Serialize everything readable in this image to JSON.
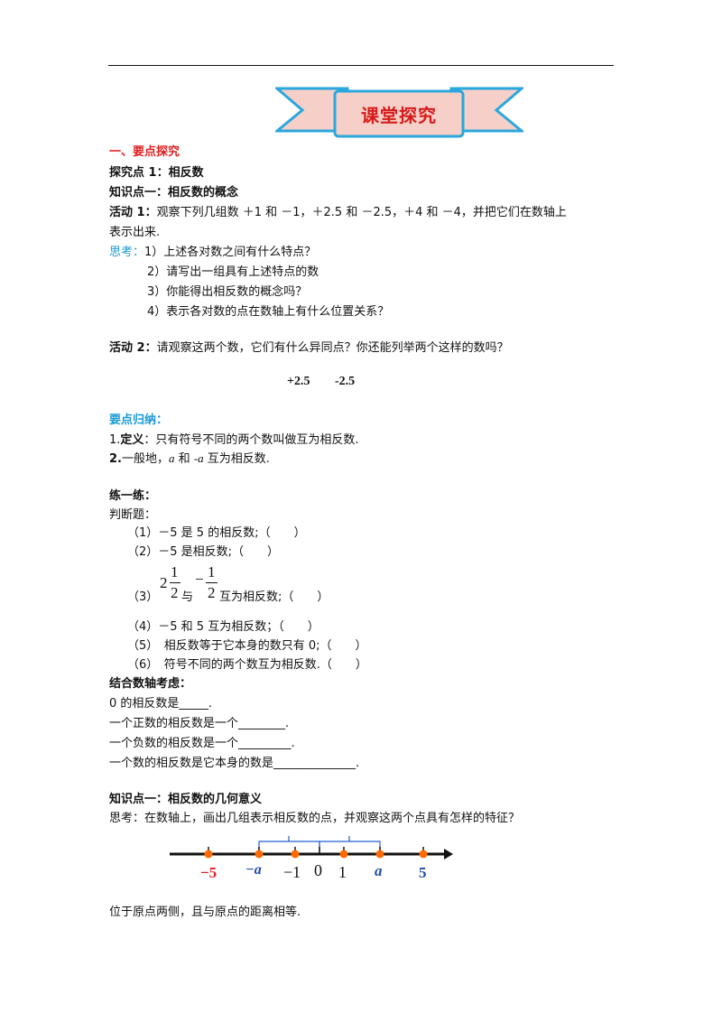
{
  "banner": {
    "title": "课堂探究"
  },
  "sec1": {
    "heading": "一、要点探究"
  },
  "explore1": {
    "title": "探究点 1：相反数"
  },
  "kp1": {
    "title": "知识点一：相反数的概念"
  },
  "act1": {
    "label": "活动 1：",
    "line1": "观察下列几组数 ＋1 和 －1，＋2.5 和 －2.5，＋4 和 －4，并把它们在数轴上",
    "line2": "表示出来."
  },
  "think": {
    "label": "思考：",
    "q1": "1）上述各对数之间有什么特点？",
    "q2": "2）请写出一组具有上述特点的数",
    "q3": "3）你能得出相反数的概念吗？",
    "q4": "4）表示各对数的点在数轴上有什么位置关系？"
  },
  "act2": {
    "label": "活动 2：",
    "text": "请观察这两个数，它们有什么异同点？你还能列举两个这样的数吗？",
    "num_a": "+2.5",
    "num_b": "-2.5"
  },
  "summary": {
    "label": "要点归纳：",
    "d1_num": "1.",
    "d1_bold": "定义",
    "d1_text": "：只有符号不同的两个数叫做互为相反数.",
    "d2_num": "2.",
    "d2_pre": "一般地，",
    "d2_a": "a",
    "d2_mid": " 和 ",
    "d2_na": "-a",
    "d2_post": " 互为相反数."
  },
  "practice": {
    "label": "练一练：",
    "judge": "判断题：",
    "i1": "（1）－5 是 5 的相反数;（　　）",
    "i2": "（2）－5 是相反数;（　　）",
    "i3_pre": "（3）",
    "i3_w1": "2",
    "i3_n1": "1",
    "i3_d1": "2",
    "i3_with": "与",
    "i3_minus": "−",
    "i3_n2": "1",
    "i3_d2": "2",
    "i3_post": "互为相反数;（　　）",
    "i4": "（4）－5 和 5 互为相反数；（　　）",
    "i5": "（5）　相反数等于它本身的数只有 0;（　　）",
    "i6": "（6）　符号不同的两个数互为相反数.（　　）"
  },
  "numline_consider": {
    "label": "结合数轴考虑：",
    "l1": "0 的相反数是_____.",
    "l2": "一个正数的相反数是一个________.",
    "l3": "一个负数的相反数是一个_________.",
    "l4": "一个数的相反数是它本身的数是______________."
  },
  "kp2": {
    "title": "知识点一：相反数的几何意义",
    "think": "思考：在数轴上，画出几组表示相反数的点，并观察这两个点具有怎样的特征？"
  },
  "axis": {
    "labels": {
      "neg5": "−5",
      "nega": "−a",
      "neg1": "−1",
      "zero": "0",
      "one": "1",
      "a": "a",
      "five": "5"
    },
    "colors": {
      "axis": "#111111",
      "points": "#ff6a00",
      "brace": "#2060d0",
      "red_label": "#e02020",
      "blue_label": "#1f4bb0"
    }
  },
  "conclusion": "位于原点两侧，且与原点的距离相等.",
  "colors": {
    "banner_fill": "#f6d0c8",
    "banner_border": "#2aa7dc",
    "heading_red": "#e02020",
    "think_blue": "#1a9ad6"
  }
}
